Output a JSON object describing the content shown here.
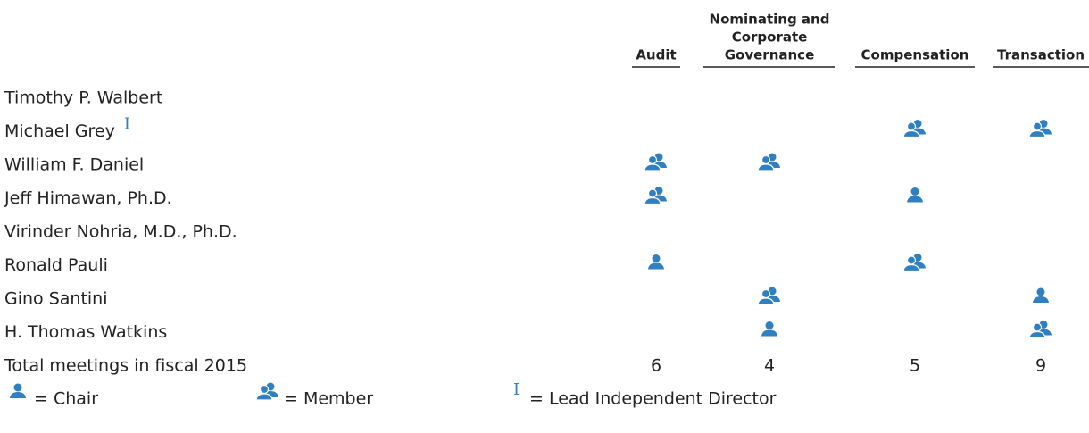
{
  "table": {
    "columns": [
      [
        "Audit"
      ],
      [
        "Nominating and",
        "Corporate",
        "Governance"
      ],
      [
        "Compensation"
      ],
      [
        "Transaction"
      ]
    ],
    "rows": [
      {
        "name": "Timothy P. Walbert",
        "cells": [
          null,
          null,
          null,
          null
        ]
      },
      {
        "name": "Michael Grey",
        "note": "I",
        "cells": [
          null,
          null,
          1,
          1
        ]
      },
      {
        "name": "William F. Daniel",
        "cells": [
          1,
          1,
          null,
          null
        ]
      },
      {
        "name": "Jeff Himawan, Ph.D.",
        "cells": [
          1,
          null,
          0,
          null
        ]
      },
      {
        "name": "Virinder Nohria, M.D., Ph.D.",
        "cells": [
          null,
          null,
          null,
          null
        ]
      },
      {
        "name": "Ronald Pauli",
        "cells": [
          0,
          null,
          1,
          null
        ]
      },
      {
        "name": "Gino Santini",
        "cells": [
          null,
          1,
          null,
          0
        ]
      },
      {
        "name": "H. Thomas Watkins",
        "cells": [
          null,
          0,
          null,
          1
        ]
      }
    ],
    "total": {
      "label": "Total meetings in fiscal 2015",
      "values": [
        6,
        4,
        5,
        9
      ]
    }
  },
  "legend": [
    {
      "label": "= Chair"
    },
    {
      "label": "= Member"
    },
    {
      "symbol": "I",
      "label": "= Lead Independent Director"
    }
  ]
}
